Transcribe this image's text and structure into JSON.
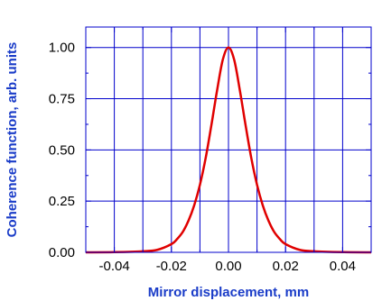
{
  "chart_data": {
    "type": "line",
    "title": "",
    "xlabel": "Mirror displacement, mm",
    "ylabel": "Coherence function, arb. units",
    "xlim": [
      -0.05,
      0.05
    ],
    "ylim": [
      0.0,
      1.1
    ],
    "x_ticks": [
      -0.04,
      -0.02,
      0.0,
      0.02,
      0.04
    ],
    "x_tick_labels": [
      "-0.04",
      "-0.02",
      "0.00",
      "0.02",
      "0.04"
    ],
    "y_ticks": [
      0.0,
      0.25,
      0.5,
      0.75,
      1.0
    ],
    "y_tick_labels": [
      "0.00",
      "0.25",
      "0.50",
      "0.75",
      "1.00"
    ],
    "grid": true,
    "grid_color": "#0000cc",
    "label_color": "#1a3cc8",
    "series": [
      {
        "color": "#e00000",
        "x": [
          -0.05,
          -0.04,
          -0.03,
          -0.025,
          -0.02,
          -0.018,
          -0.016,
          -0.014,
          -0.012,
          -0.01,
          -0.008,
          -0.006,
          -0.004,
          -0.002,
          0.0,
          0.002,
          0.004,
          0.006,
          0.008,
          0.01,
          0.012,
          0.014,
          0.016,
          0.018,
          0.02,
          0.025,
          0.03,
          0.04,
          0.05
        ],
        "y": [
          0.0,
          0.001,
          0.005,
          0.012,
          0.04,
          0.065,
          0.1,
          0.155,
          0.23,
          0.33,
          0.46,
          0.62,
          0.79,
          0.94,
          1.0,
          0.94,
          0.79,
          0.62,
          0.46,
          0.33,
          0.23,
          0.155,
          0.1,
          0.065,
          0.04,
          0.012,
          0.005,
          0.001,
          0.0
        ]
      }
    ]
  }
}
